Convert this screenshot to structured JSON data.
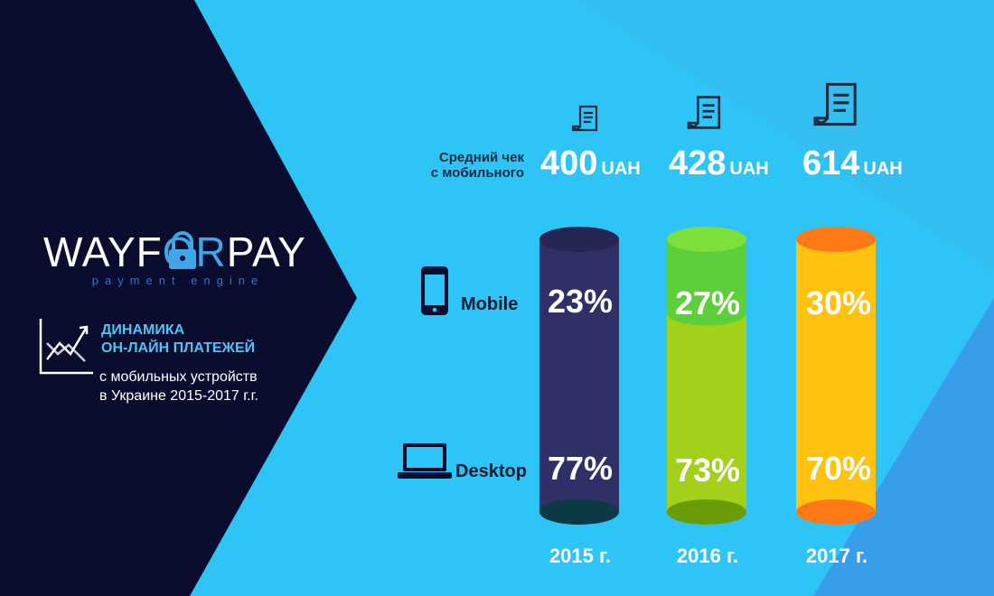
{
  "brand": {
    "logo_part1": "WAYF",
    "logo_part2": "OR",
    "logo_part3": "PAY",
    "tagline": "payment engine"
  },
  "headline": {
    "line1": "ДИНАМИКА",
    "line2": "ОН-ЛАЙН ПЛАТЕЖЕЙ",
    "line3": "с мобильных устройств",
    "line4": "в Украине 2015-2017 г.г."
  },
  "avg_check_label_line1": "Средний чек",
  "avg_check_label_line2": "с мобильного",
  "currency": "UAH",
  "mobile_label": "Mobile",
  "desktop_label": "Desktop",
  "colors": {
    "dark_panel": "#0b0d2e",
    "background": "#2ec4f5",
    "bar_2015": "#2f3066",
    "bar_2016_mobile": "#5dcf3a",
    "bar_2016_desktop": "#a3d01a",
    "bar_2017": "#ffc20e",
    "bar_2017_cap": "#ff7a14"
  },
  "icons": [
    "receipt-icon",
    "smartphone-icon",
    "laptop-icon",
    "growth-chart-icon",
    "padlock-icon"
  ],
  "chart_data": {
    "type": "bar",
    "stacked": true,
    "categories": [
      "2015 г.",
      "2016 г.",
      "2017 г."
    ],
    "series": [
      {
        "name": "Mobile",
        "values": [
          23,
          27,
          30
        ],
        "labels": [
          "23%",
          "27%",
          "30%"
        ]
      },
      {
        "name": "Desktop",
        "values": [
          77,
          73,
          70
        ],
        "labels": [
          "77%",
          "73%",
          "70%"
        ]
      }
    ],
    "avg_check": {
      "values": [
        400,
        428,
        614
      ],
      "labels": [
        "400",
        "428",
        "614"
      ]
    },
    "ylim": [
      0,
      100
    ],
    "legend": "left"
  }
}
